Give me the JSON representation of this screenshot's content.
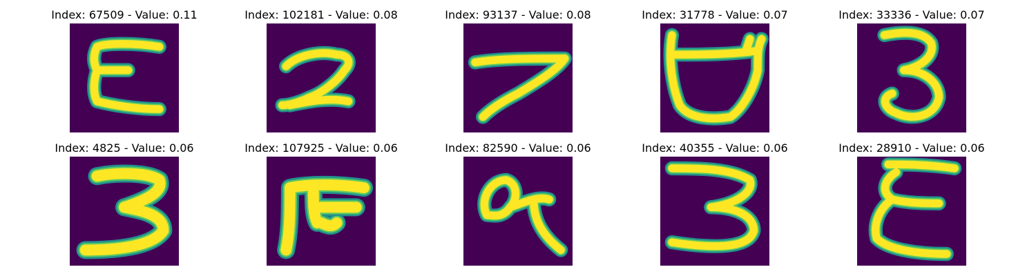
{
  "colors": {
    "background": "#440154",
    "stroke_edge": "#21918c",
    "stroke_mid": "#5ec962",
    "stroke_core": "#fde725"
  },
  "panels": [
    {
      "title": "Index: 67509 - Value: 0.11",
      "glyph": "E-shape"
    },
    {
      "title": "Index: 102181 - Value: 0.08",
      "glyph": "2-shape"
    },
    {
      "title": "Index: 93137 - Value: 0.08",
      "glyph": "7-shape"
    },
    {
      "title": "Index: 31778 - Value: 0.07",
      "glyph": "cup-shape"
    },
    {
      "title": "Index: 33336 - Value: 0.07",
      "glyph": "3-shape"
    },
    {
      "title": "Index: 4825 - Value: 0.06",
      "glyph": "3-bold-shape"
    },
    {
      "title": "Index: 107925 - Value: 0.06",
      "glyph": "table-shape"
    },
    {
      "title": "Index: 82590 - Value: 0.06",
      "glyph": "loop-shape"
    },
    {
      "title": "Index: 40355 - Value: 0.06",
      "glyph": "3-open-shape"
    },
    {
      "title": "Index: 28910 - Value: 0.06",
      "glyph": "epsilon-shape"
    }
  ]
}
